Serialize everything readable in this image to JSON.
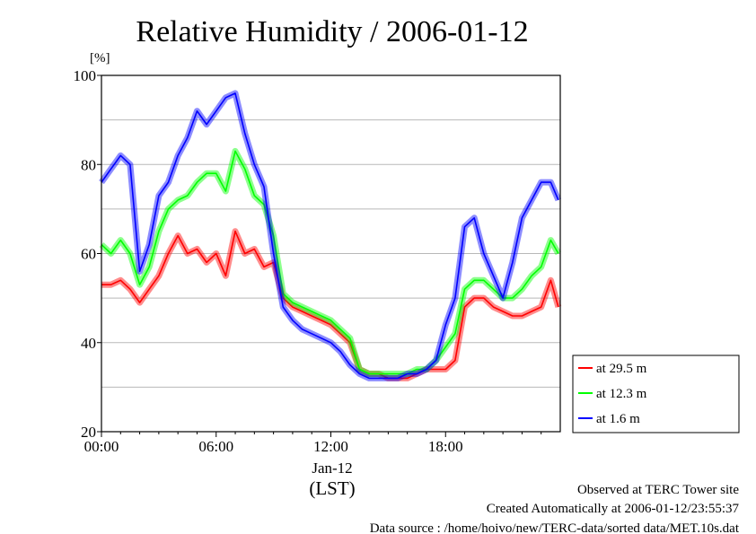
{
  "chart_data": {
    "type": "line",
    "title": "Relative Humidity / 2006-01-12",
    "ylabel": "[%]",
    "xlabel": "(LST)",
    "date_label": "Jan-12",
    "ylim": [
      20,
      100
    ],
    "xlim": [
      0,
      24
    ],
    "yticks": [
      20,
      40,
      60,
      80,
      100
    ],
    "xticks": [
      0,
      6,
      12,
      18
    ],
    "xtick_labels": [
      "00:00",
      "06:00",
      "12:00",
      "18:00"
    ],
    "grid": true,
    "legend_position": "right",
    "series": [
      {
        "name": "at 29.5 m",
        "color": "#ff0000",
        "x": [
          0,
          0.5,
          1,
          1.5,
          2,
          2.5,
          3,
          3.5,
          4,
          4.5,
          5,
          5.5,
          6,
          6.5,
          7,
          7.5,
          8,
          8.5,
          9,
          9.5,
          10,
          10.5,
          11,
          11.5,
          12,
          12.5,
          13,
          13.5,
          14,
          14.5,
          15,
          15.5,
          16,
          16.5,
          17,
          17.5,
          18,
          18.5,
          19,
          19.5,
          20,
          20.5,
          21,
          21.5,
          22,
          22.5,
          23,
          23.5,
          23.9
        ],
        "y": [
          53,
          53,
          54,
          52,
          49,
          52,
          55,
          60,
          64,
          60,
          61,
          58,
          60,
          55,
          65,
          60,
          61,
          57,
          58,
          50,
          48,
          47,
          46,
          45,
          44,
          42,
          40,
          34,
          33,
          33,
          32,
          32,
          32,
          33,
          34,
          34,
          34,
          36,
          48,
          50,
          50,
          48,
          47,
          46,
          46,
          47,
          48,
          54,
          48
        ]
      },
      {
        "name": "at 12.3 m",
        "color": "#00ff00",
        "x": [
          0,
          0.5,
          1,
          1.5,
          2,
          2.5,
          3,
          3.5,
          4,
          4.5,
          5,
          5.5,
          6,
          6.5,
          7,
          7.5,
          8,
          8.5,
          9,
          9.5,
          10,
          10.5,
          11,
          11.5,
          12,
          12.5,
          13,
          13.5,
          14,
          14.5,
          15,
          15.5,
          16,
          16.5,
          17,
          17.5,
          18,
          18.5,
          19,
          19.5,
          20,
          20.5,
          21,
          21.5,
          22,
          22.5,
          23,
          23.5,
          23.9
        ],
        "y": [
          62,
          60,
          63,
          60,
          53,
          57,
          65,
          70,
          72,
          73,
          76,
          78,
          78,
          74,
          83,
          79,
          73,
          71,
          64,
          51,
          49,
          48,
          47,
          46,
          45,
          43,
          41,
          34,
          33,
          33,
          33,
          33,
          33,
          34,
          34,
          36,
          39,
          42,
          52,
          54,
          54,
          52,
          50,
          50,
          52,
          55,
          57,
          63,
          60
        ]
      },
      {
        "name": "at 1.6 m",
        "color": "#0000ff",
        "x": [
          0,
          0.5,
          1,
          1.5,
          2,
          2.5,
          3,
          3.5,
          4,
          4.5,
          5,
          5.5,
          6,
          6.5,
          7,
          7.5,
          8,
          8.5,
          9,
          9.5,
          10,
          10.5,
          11,
          11.5,
          12,
          12.5,
          13,
          13.5,
          14,
          14.5,
          15,
          15.5,
          16,
          16.5,
          17,
          17.5,
          18,
          18.5,
          19,
          19.5,
          20,
          20.5,
          21,
          21.5,
          22,
          22.5,
          23,
          23.5,
          23.9
        ],
        "y": [
          76,
          79,
          82,
          80,
          56,
          62,
          73,
          76,
          82,
          86,
          92,
          89,
          92,
          95,
          96,
          87,
          80,
          75,
          60,
          48,
          45,
          43,
          42,
          41,
          40,
          38,
          35,
          33,
          32,
          32,
          32,
          32,
          33,
          33,
          34,
          36,
          44,
          50,
          66,
          68,
          60,
          55,
          50,
          58,
          68,
          72,
          76,
          76,
          72
        ]
      }
    ]
  },
  "footer": {
    "line1": "Observed at TERC Tower site",
    "line2": "Created Automatically at 2006-01-12/23:55:37",
    "line3": "Data source : /home/hoivo/new/TERC-data/sorted  data/MET.10s.dat"
  }
}
